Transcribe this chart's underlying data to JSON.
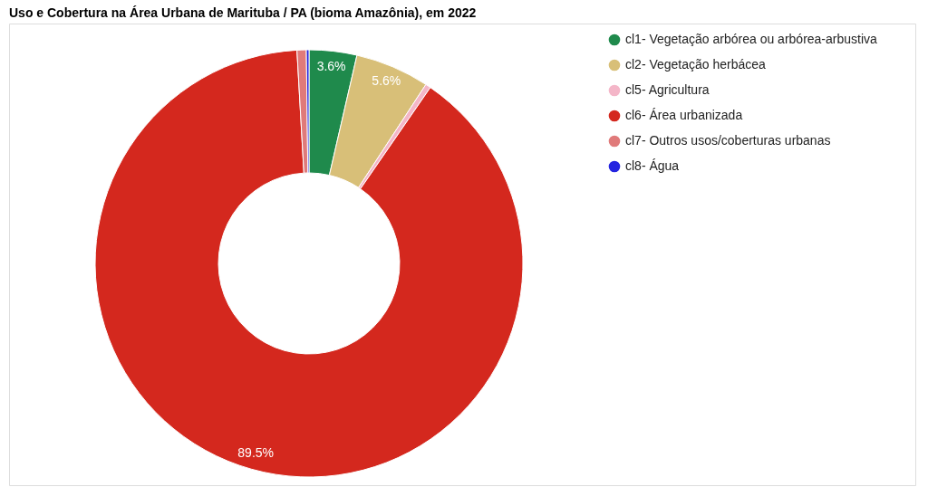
{
  "chart_data": {
    "type": "donut",
    "title": "Uso e Cobertura na Área Urbana de Marituba / PA (bioma Amazônia), em 2022",
    "categories": [
      "cl1- Vegetação arbórea ou arbórea-arbustiva",
      "cl2- Vegetação herbácea",
      "cl5- Agricultura",
      "cl6- Área urbanizada",
      "cl7- Outros usos/coberturas urbanas",
      "cl8- Água"
    ],
    "values": [
      3.6,
      5.6,
      0.4,
      89.5,
      0.7,
      0.2
    ],
    "value_labels": [
      "3.6%",
      "5.6%",
      null,
      "89.5%",
      null,
      null
    ],
    "colors": [
      "#1f8a4c",
      "#d8bf78",
      "#f4b6c8",
      "#d4281e",
      "#e07a7a",
      "#2424e0"
    ],
    "legend": "top right"
  }
}
